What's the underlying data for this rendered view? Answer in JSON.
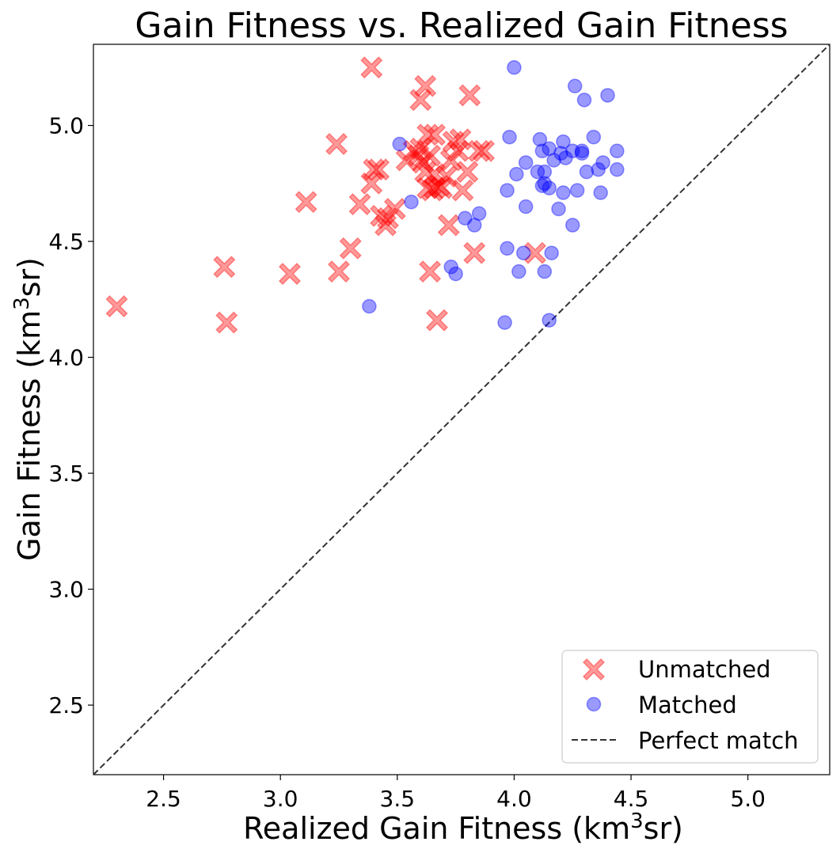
{
  "chart_data": {
    "type": "scatter",
    "title": "Gain Fitness vs. Realized Gain Fitness",
    "xlabel": {
      "pre": "Realized Gain Fitness (km",
      "sup": "3",
      "post": "sr)"
    },
    "ylabel": {
      "pre": "Gain Fitness (km",
      "sup": "3",
      "post": "sr)"
    },
    "xlim": [
      2.2,
      5.35
    ],
    "ylim": [
      2.2,
      5.35
    ],
    "xticks": [
      2.5,
      3.0,
      3.5,
      4.0,
      4.5,
      5.0
    ],
    "xtick_labels": [
      "2.5",
      "3.0",
      "3.5",
      "4.0",
      "4.5",
      "5.0"
    ],
    "yticks": [
      2.5,
      3.0,
      3.5,
      4.0,
      4.5,
      5.0
    ],
    "ytick_labels": [
      "2.5",
      "3.0",
      "3.5",
      "4.0",
      "4.5",
      "5.0"
    ],
    "legend_position": "bottom-right",
    "colors": {
      "unmatched": "#ff0000",
      "matched": "#0000ff",
      "reference": "#333333"
    },
    "series": [
      {
        "name": "Unmatched",
        "marker": "x",
        "points": [
          [
            2.3,
            4.22
          ],
          [
            2.76,
            4.39
          ],
          [
            2.77,
            4.15
          ],
          [
            3.04,
            4.36
          ],
          [
            3.11,
            4.67
          ],
          [
            3.24,
            4.92
          ],
          [
            3.25,
            4.37
          ],
          [
            3.3,
            4.47
          ],
          [
            3.34,
            4.66
          ],
          [
            3.39,
            5.25
          ],
          [
            3.39,
            4.75
          ],
          [
            3.4,
            4.81
          ],
          [
            3.42,
            4.81
          ],
          [
            3.43,
            4.61
          ],
          [
            3.45,
            4.57
          ],
          [
            3.46,
            4.6
          ],
          [
            3.49,
            4.64
          ],
          [
            3.54,
            4.85
          ],
          [
            3.57,
            4.89
          ],
          [
            3.59,
            4.87
          ],
          [
            3.6,
            5.11
          ],
          [
            3.6,
            4.9
          ],
          [
            3.61,
            4.84
          ],
          [
            3.62,
            5.17
          ],
          [
            3.62,
            4.8
          ],
          [
            3.63,
            4.96
          ],
          [
            3.63,
            4.73
          ],
          [
            3.64,
            4.37
          ],
          [
            3.64,
            4.87
          ],
          [
            3.65,
            4.72
          ],
          [
            3.66,
            4.96
          ],
          [
            3.66,
            4.79
          ],
          [
            3.66,
            4.73
          ],
          [
            3.67,
            4.16
          ],
          [
            3.68,
            4.74
          ],
          [
            3.69,
            4.73
          ],
          [
            3.71,
            4.78
          ],
          [
            3.72,
            4.57
          ],
          [
            3.73,
            4.85
          ],
          [
            3.74,
            4.93
          ],
          [
            3.76,
            4.89
          ],
          [
            3.77,
            4.94
          ],
          [
            3.78,
            4.72
          ],
          [
            3.8,
            4.8
          ],
          [
            3.81,
            5.13
          ],
          [
            3.83,
            4.45
          ],
          [
            3.85,
            4.89
          ],
          [
            3.87,
            4.89
          ],
          [
            4.09,
            4.45
          ]
        ]
      },
      {
        "name": "Matched",
        "marker": "o",
        "points": [
          [
            3.38,
            4.22
          ],
          [
            3.51,
            4.92
          ],
          [
            3.56,
            4.67
          ],
          [
            3.73,
            4.39
          ],
          [
            3.75,
            4.36
          ],
          [
            3.79,
            4.6
          ],
          [
            3.83,
            4.57
          ],
          [
            3.85,
            4.62
          ],
          [
            3.96,
            4.15
          ],
          [
            3.97,
            4.72
          ],
          [
            3.97,
            4.47
          ],
          [
            3.98,
            4.95
          ],
          [
            4.0,
            5.25
          ],
          [
            4.01,
            4.79
          ],
          [
            4.02,
            4.37
          ],
          [
            4.04,
            4.45
          ],
          [
            4.05,
            4.65
          ],
          [
            4.05,
            4.84
          ],
          [
            4.1,
            4.8
          ],
          [
            4.11,
            4.94
          ],
          [
            4.12,
            4.74
          ],
          [
            4.12,
            4.89
          ],
          [
            4.13,
            4.8
          ],
          [
            4.13,
            4.75
          ],
          [
            4.13,
            4.37
          ],
          [
            4.15,
            4.9
          ],
          [
            4.15,
            4.73
          ],
          [
            4.15,
            4.16
          ],
          [
            4.16,
            4.45
          ],
          [
            4.17,
            4.85
          ],
          [
            4.19,
            4.64
          ],
          [
            4.2,
            4.88
          ],
          [
            4.21,
            4.71
          ],
          [
            4.21,
            4.93
          ],
          [
            4.22,
            4.86
          ],
          [
            4.25,
            4.89
          ],
          [
            4.25,
            4.57
          ],
          [
            4.26,
            5.17
          ],
          [
            4.27,
            4.72
          ],
          [
            4.29,
            4.88
          ],
          [
            4.29,
            4.89
          ],
          [
            4.3,
            5.11
          ],
          [
            4.31,
            4.8
          ],
          [
            4.34,
            4.95
          ],
          [
            4.36,
            4.81
          ],
          [
            4.37,
            4.71
          ],
          [
            4.38,
            4.84
          ],
          [
            4.4,
            5.13
          ],
          [
            4.44,
            4.89
          ],
          [
            4.44,
            4.81
          ]
        ]
      }
    ],
    "reference_line": {
      "name": "Perfect match",
      "from": [
        2.2,
        2.2
      ],
      "to": [
        5.35,
        5.35
      ],
      "style": "dashed"
    }
  }
}
